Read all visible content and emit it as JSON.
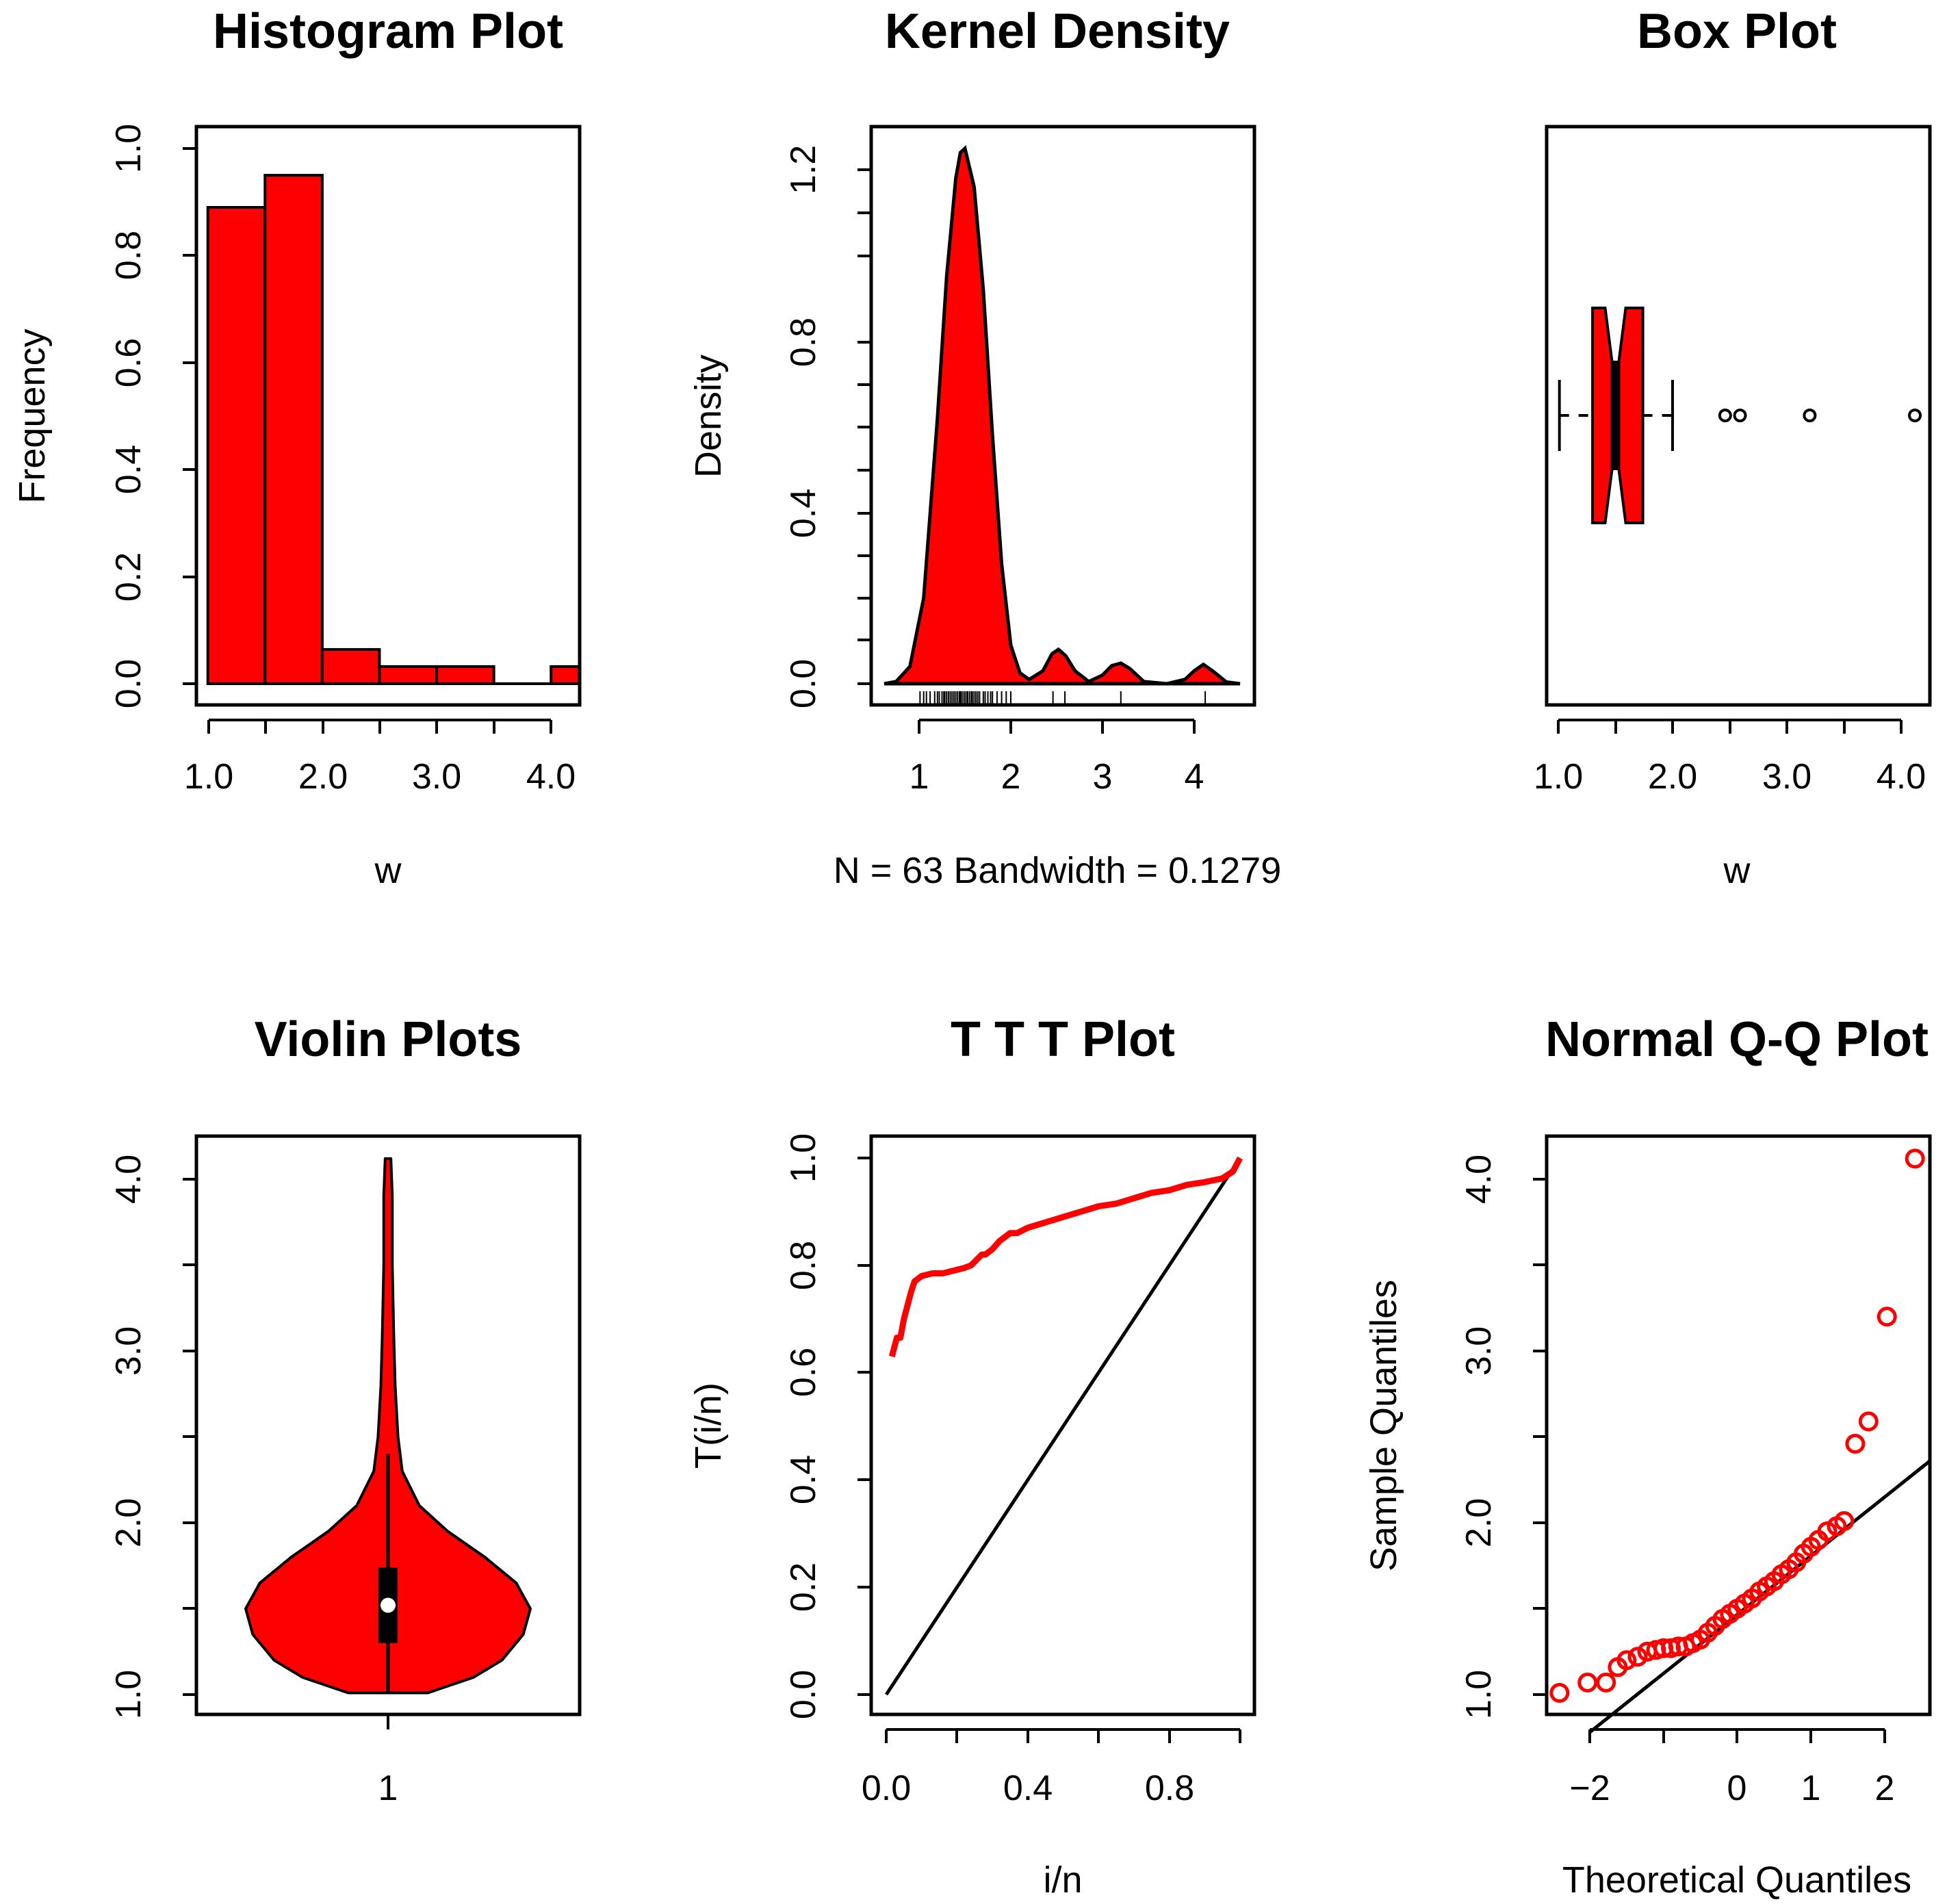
{
  "colors": {
    "fill": "#ff0000",
    "stroke": "#000000",
    "point": "#ff0000"
  },
  "chart_data": [
    {
      "type": "bar",
      "title": "Histogram Plot",
      "xlabel": "w",
      "ylabel": "Frequency",
      "xlim": [
        0.9,
        4.25
      ],
      "ylim": [
        0,
        1.05
      ],
      "bins": [
        [
          1.0,
          1.5
        ],
        [
          1.5,
          2.0
        ],
        [
          2.0,
          2.5
        ],
        [
          2.5,
          3.0
        ],
        [
          3.0,
          3.5
        ],
        [
          3.5,
          4.0
        ],
        [
          4.0,
          4.5
        ]
      ],
      "values": [
        0.89,
        0.95,
        0.064,
        0.032,
        0.032,
        0.0,
        0.032
      ],
      "xticks": [
        "1.0",
        "2.0",
        "3.0",
        "4.0"
      ],
      "yticks": [
        "0.0",
        "0.2",
        "0.4",
        "0.6",
        "0.8",
        "1.0"
      ]
    },
    {
      "type": "area",
      "title": "Kernel Density",
      "ylabel": "Density",
      "xlabel": "N = 63   Bandwidth = 0.1279",
      "xlim": [
        0.6,
        4.6
      ],
      "ylim": [
        0,
        1.3
      ],
      "x": [
        0.62,
        0.75,
        0.9,
        1.05,
        1.2,
        1.3,
        1.4,
        1.45,
        1.5,
        1.6,
        1.7,
        1.8,
        1.9,
        2.0,
        2.1,
        2.2,
        2.35,
        2.45,
        2.52,
        2.6,
        2.7,
        2.85,
        3.0,
        3.1,
        3.2,
        3.3,
        3.45,
        3.7,
        3.9,
        4.0,
        4.1,
        4.2,
        4.35,
        4.5
      ],
      "y": [
        0.0,
        0.005,
        0.04,
        0.2,
        0.62,
        0.95,
        1.18,
        1.24,
        1.25,
        1.16,
        0.92,
        0.58,
        0.28,
        0.09,
        0.025,
        0.01,
        0.03,
        0.07,
        0.08,
        0.065,
        0.03,
        0.005,
        0.02,
        0.042,
        0.048,
        0.035,
        0.005,
        0.0,
        0.01,
        0.03,
        0.045,
        0.03,
        0.004,
        0.0
      ],
      "rug": [
        1.01,
        1.05,
        1.08,
        1.12,
        1.17,
        1.2,
        1.22,
        1.25,
        1.27,
        1.28,
        1.3,
        1.32,
        1.34,
        1.36,
        1.38,
        1.4,
        1.42,
        1.44,
        1.45,
        1.46,
        1.48,
        1.5,
        1.52,
        1.53,
        1.55,
        1.57,
        1.58,
        1.6,
        1.62,
        1.64,
        1.66,
        1.7,
        1.72,
        1.75,
        1.78,
        1.8,
        1.85,
        1.9,
        1.95,
        2.0,
        2.46,
        2.59,
        3.2,
        4.12
      ],
      "xticks": [
        "1",
        "2",
        "3",
        "4"
      ],
      "yticks": [
        "0.0",
        "0.4",
        "0.8",
        "1.2"
      ]
    },
    {
      "type": "box",
      "title": "Box Plot",
      "xlabel": "w",
      "xlim": [
        0.9,
        4.25
      ],
      "whisker_low": 1.01,
      "q1": 1.3,
      "median": 1.5,
      "q3": 1.74,
      "whisker_high": 2.0,
      "notch": [
        1.41,
        1.59
      ],
      "outliers": [
        2.46,
        2.59,
        3.2,
        4.12
      ],
      "xticks": [
        "1.0",
        "2.0",
        "3.0",
        "4.0"
      ]
    },
    {
      "type": "violin",
      "title": "Violin Plots",
      "ylim": [
        0.9,
        4.25
      ],
      "profile_y": [
        1.01,
        1.1,
        1.2,
        1.35,
        1.5,
        1.65,
        1.8,
        1.95,
        2.1,
        2.3,
        2.5,
        2.8,
        3.1,
        3.5,
        3.9,
        4.12
      ],
      "half_width": [
        0.28,
        0.6,
        0.8,
        0.95,
        1.0,
        0.9,
        0.68,
        0.42,
        0.22,
        0.1,
        0.07,
        0.05,
        0.04,
        0.03,
        0.03,
        0.02
      ],
      "whisker": [
        1.01,
        2.4
      ],
      "iqr": [
        1.3,
        1.74
      ],
      "median": 1.52,
      "xticks": [
        "1"
      ],
      "yticks": [
        "1.0",
        "2.0",
        "3.0",
        "4.0"
      ]
    },
    {
      "type": "line",
      "title": "T T T Plot",
      "xlabel": "i/n",
      "ylabel": "T(i/n)",
      "xlim": [
        -0.03,
        1.03
      ],
      "ylim": [
        -0.04,
        1.04
      ],
      "series": [
        {
          "x": [
            0.016,
            0.03,
            0.04,
            0.05,
            0.06,
            0.07,
            0.08,
            0.1,
            0.13,
            0.16,
            0.19,
            0.22,
            0.24,
            0.27,
            0.28,
            0.3,
            0.32,
            0.35,
            0.37,
            0.4,
            0.45,
            0.5,
            0.55,
            0.6,
            0.65,
            0.7,
            0.75,
            0.8,
            0.85,
            0.9,
            0.95,
            0.98,
            1.0
          ],
          "y": [
            0.63,
            0.665,
            0.665,
            0.7,
            0.725,
            0.75,
            0.77,
            0.78,
            0.785,
            0.785,
            0.79,
            0.795,
            0.8,
            0.82,
            0.82,
            0.83,
            0.845,
            0.86,
            0.86,
            0.87,
            0.88,
            0.89,
            0.9,
            0.91,
            0.915,
            0.925,
            0.935,
            0.94,
            0.95,
            0.955,
            0.962,
            0.975,
            1.0
          ]
        },
        {
          "x": [
            0.0,
            1.0
          ],
          "y": [
            0.0,
            1.0
          ]
        }
      ],
      "xticks": [
        "0.0",
        "0.4",
        "0.8"
      ],
      "yticks": [
        "0.0",
        "0.2",
        "0.4",
        "0.6",
        "0.8",
        "1.0"
      ]
    },
    {
      "type": "scatter",
      "title": "Normal Q-Q Plot",
      "xlabel": "Theoretical Quantiles",
      "ylabel": "Sample Quantiles",
      "xlim": [
        -2.6,
        2.6
      ],
      "ylim": [
        0.9,
        4.25
      ],
      "points": [
        [
          -2.41,
          1.01
        ],
        [
          -2.03,
          1.07
        ],
        [
          -1.78,
          1.07
        ],
        [
          -1.62,
          1.16
        ],
        [
          -1.5,
          1.2
        ],
        [
          -1.35,
          1.22
        ],
        [
          -1.22,
          1.25
        ],
        [
          -1.1,
          1.26
        ],
        [
          -1.0,
          1.27
        ],
        [
          -0.9,
          1.27
        ],
        [
          -0.8,
          1.28
        ],
        [
          -0.7,
          1.28
        ],
        [
          -0.6,
          1.3
        ],
        [
          -0.5,
          1.32
        ],
        [
          -0.4,
          1.36
        ],
        [
          -0.3,
          1.4
        ],
        [
          -0.2,
          1.44
        ],
        [
          -0.1,
          1.47
        ],
        [
          0.0,
          1.5
        ],
        [
          0.1,
          1.53
        ],
        [
          0.2,
          1.56
        ],
        [
          0.3,
          1.6
        ],
        [
          0.4,
          1.63
        ],
        [
          0.5,
          1.66
        ],
        [
          0.6,
          1.7
        ],
        [
          0.7,
          1.73
        ],
        [
          0.8,
          1.77
        ],
        [
          0.9,
          1.82
        ],
        [
          1.0,
          1.86
        ],
        [
          1.1,
          1.9
        ],
        [
          1.22,
          1.95
        ],
        [
          1.35,
          1.98
        ],
        [
          1.45,
          2.01
        ],
        [
          1.6,
          2.46
        ],
        [
          1.78,
          2.59
        ],
        [
          2.03,
          3.2
        ],
        [
          2.41,
          4.12
        ]
      ],
      "line": [
        [
          -2.0,
          0.9
        ],
        [
          2.6,
          2.36
        ]
      ],
      "xticks": [
        "-2",
        "0",
        "1",
        "2"
      ],
      "yticks": [
        "1.0",
        "2.0",
        "3.0",
        "4.0"
      ]
    }
  ]
}
